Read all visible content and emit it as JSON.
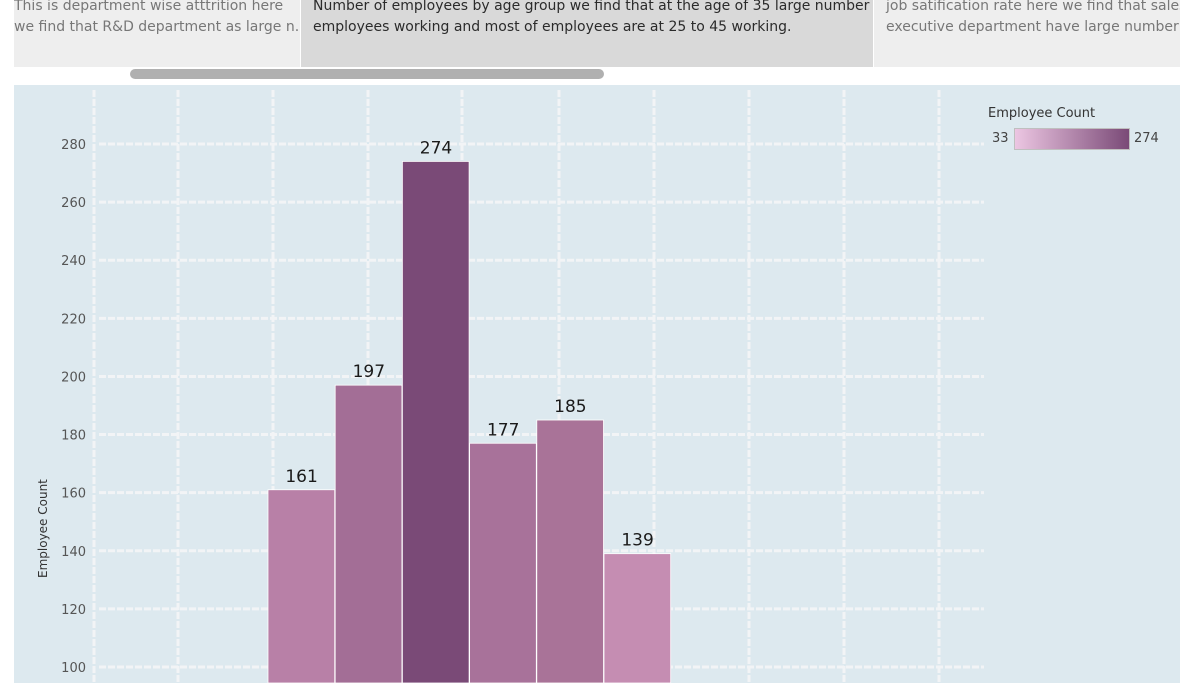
{
  "captions": [
    {
      "text": "This is department wise  atttrition here\nwe find that R&D department as large n.."
    },
    {
      "text": "Number of employees by age group we find that at the age of 35 large number of\nemployees working and most of employees are at 25 to 45 working."
    },
    {
      "text": "job satification rate here we find that sales\nexecutive department have large number o.."
    }
  ],
  "legend": {
    "title": "Employee Count",
    "min_label": "33",
    "max_label": "274",
    "color_min": "#ecc6e2",
    "color_max": "#7a4a77"
  },
  "colors": {
    "panel_bg": "#dde9ef",
    "gridline": "#f2f4f6"
  },
  "chart_data": {
    "type": "bar",
    "title": "",
    "xlabel": "",
    "ylabel": "Employee Count",
    "ylim": [
      100,
      280
    ],
    "y_ticks": [
      100,
      120,
      140,
      160,
      180,
      200,
      220,
      240,
      260,
      280
    ],
    "values": [
      161,
      197,
      274,
      177,
      185,
      139
    ],
    "bar_colors": [
      "#b880a7",
      "#a36e96",
      "#7a4a77",
      "#a8729a",
      "#a97398",
      "#c58db2"
    ],
    "color_encoding": "Employee Count",
    "grid": true,
    "legend_position": "top-right"
  }
}
